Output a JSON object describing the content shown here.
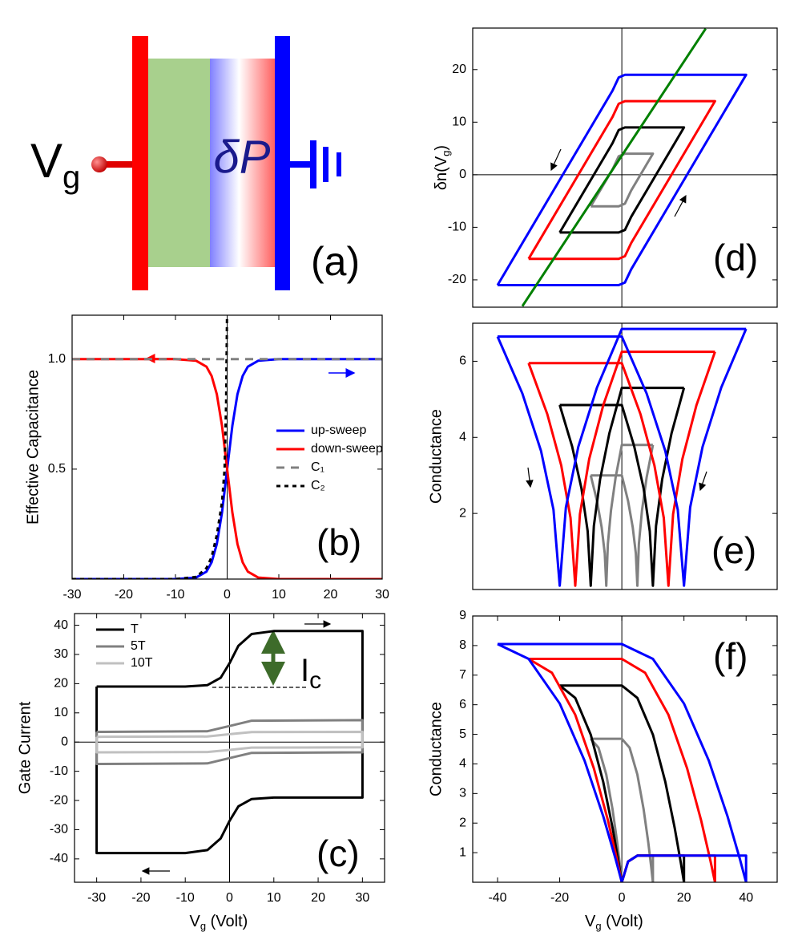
{
  "schematic": {
    "gate": [
      "V",
      "g"
    ],
    "polarization": "δP",
    "label": "(a)"
  },
  "chart_data": [
    {
      "type": "line",
      "label": "(b)",
      "ylabel": "Effective Capacitance",
      "xlim": [
        -30,
        30
      ],
      "ylim": [
        0,
        1.2
      ],
      "xticks": [
        -30,
        -20,
        -10,
        0,
        10,
        20,
        30
      ],
      "yticks": [
        0.5,
        {
          "value": 1,
          "label": "1.0"
        }
      ],
      "zero_lines": [
        "x"
      ],
      "legend": "right",
      "series": [
        {
          "name": "up-sweep",
          "color": "#0000ff",
          "x": [
            -30,
            -10,
            -6,
            -4,
            -3,
            -2,
            -1,
            0,
            1,
            2,
            3,
            4,
            6,
            10,
            30
          ],
          "values": [
            0,
            0,
            0.007,
            0.034,
            0.076,
            0.159,
            0.303,
            0.5,
            0.697,
            0.841,
            0.924,
            0.966,
            0.993,
            1,
            1
          ]
        },
        {
          "name": "down-sweep",
          "color": "#ff0000",
          "x": [
            -30,
            -10,
            -6,
            -4,
            -3,
            -2,
            -1,
            0,
            1,
            2,
            3,
            4,
            6,
            10,
            30
          ],
          "values": [
            1,
            1,
            0.993,
            0.966,
            0.924,
            0.841,
            0.697,
            0.5,
            0.303,
            0.159,
            0.076,
            0.034,
            0.007,
            0,
            0
          ]
        },
        {
          "name": "C₁",
          "color": "#808080",
          "linestyle": "dash",
          "x": [
            -30,
            30
          ],
          "values": [
            1,
            1
          ]
        },
        {
          "name": "C₂",
          "color": "#000000",
          "linestyle": "dot",
          "x": [
            -30,
            -10,
            -6,
            -4,
            -3,
            -2,
            -1,
            -0.5,
            -0.2,
            0
          ],
          "values": [
            0,
            0,
            0.01,
            0.05,
            0.1,
            0.2,
            0.35,
            0.5,
            0.8,
            1.25
          ]
        }
      ]
    },
    {
      "type": "line",
      "label": "(c)",
      "ylabel": "Gate Current",
      "xlabel": [
        "V",
        "g",
        " (Volt)"
      ],
      "annotation": [
        "I",
        "c"
      ],
      "xlim": [
        -35,
        35
      ],
      "ylim": [
        -48,
        44
      ],
      "xticks": [
        -30,
        -20,
        -10,
        0,
        10,
        20,
        30
      ],
      "yticks": [
        -40,
        -30,
        -20,
        -10,
        0,
        10,
        20,
        30,
        40
      ],
      "zero_lines": [
        "x",
        "y"
      ],
      "legend": "upper left",
      "series": [
        {
          "name": "T",
          "color": "#000000",
          "x": [
            -30,
            -10,
            -5,
            -2,
            0,
            2,
            5,
            10,
            30,
            30,
            10,
            5,
            2,
            0,
            -2,
            -5,
            -10,
            -30,
            -30
          ],
          "values": [
            19,
            19,
            19.5,
            22,
            27,
            33,
            37,
            38,
            38,
            -19,
            -19,
            -19.5,
            -22,
            -27,
            -33,
            -37,
            -38,
            -38,
            19
          ]
        },
        {
          "name": "5T",
          "color": "#808080",
          "x": [
            -30,
            -5,
            0,
            5,
            30,
            30,
            5,
            0,
            -5,
            -30,
            -30
          ],
          "values": [
            3.5,
            3.7,
            5.5,
            7.3,
            7.5,
            -3.5,
            -3.7,
            -5.5,
            -7.3,
            -7.5,
            3.5
          ]
        },
        {
          "name": "10T",
          "color": "#c0c0c0",
          "x": [
            -30,
            -5,
            0,
            5,
            30,
            30,
            5,
            0,
            -5,
            -30,
            -30
          ],
          "values": [
            1.8,
            1.9,
            2.7,
            3.4,
            3.5,
            -1.8,
            -1.9,
            -2.7,
            -3.4,
            -3.5,
            1.8
          ]
        }
      ]
    },
    {
      "type": "line",
      "label": "(d)",
      "ylabel": [
        "δn(V",
        "g",
        ")"
      ],
      "xlim": [
        -48,
        50
      ],
      "ylim": [
        -25.2,
        27.9
      ],
      "yticks": [
        -20,
        -10,
        0,
        10,
        20
      ],
      "zero_lines": [
        "x",
        "y"
      ],
      "series": [
        {
          "color": "#808080",
          "x": [
            -10,
            -3,
            -1,
            1,
            10,
            3,
            1,
            -1,
            -10
          ],
          "values": [
            -6,
            1,
            3.5,
            4,
            4,
            -3,
            -5.5,
            -6,
            -6
          ]
        },
        {
          "color": "#000000",
          "x": [
            -20,
            -3,
            -1,
            1,
            20,
            3,
            1,
            -1,
            -20
          ],
          "values": [
            -11,
            6,
            8.5,
            9,
            9,
            -8,
            -10.5,
            -11,
            -11
          ]
        },
        {
          "color": "#ff0000",
          "x": [
            -30,
            -3,
            -1,
            1,
            30,
            3,
            1,
            -1,
            -30
          ],
          "values": [
            -16,
            11,
            13.5,
            14,
            14,
            -13,
            -15.5,
            -16,
            -16
          ]
        },
        {
          "color": "#0000ff",
          "x": [
            -40,
            -3,
            -1,
            1,
            40,
            3,
            1,
            -1,
            -40
          ],
          "values": [
            -21,
            16,
            18.5,
            19,
            19,
            -18,
            -20.5,
            -21,
            -21
          ]
        },
        {
          "color": "#008000",
          "x": [
            -32,
            27
          ],
          "values": [
            -25,
            27.8
          ]
        }
      ]
    },
    {
      "type": "line",
      "label": "(e)",
      "ylabel": "Conductance",
      "xlim": [
        -48,
        50
      ],
      "ylim": [
        0,
        7
      ],
      "yticks": [
        2,
        4,
        6
      ],
      "zero_lines": [
        "x"
      ],
      "series": [
        {
          "color": "#808080",
          "x": [
            -10,
            -8,
            -6.5,
            -5.5,
            -5,
            -4.5,
            -3.5,
            -2,
            0,
            10
          ],
          "values": [
            3.0,
            2.33,
            1.64,
            0.95,
            0.1,
            1.2,
            2.08,
            2.95,
            3.8,
            3.8
          ]
        },
        {
          "color": "#808080",
          "x": [
            10,
            8,
            6.5,
            5.5,
            5,
            4.5,
            3.5,
            2,
            0,
            -10
          ],
          "values": [
            3.8,
            2.95,
            2.08,
            1.2,
            0.1,
            0.95,
            1.64,
            2.33,
            3.0,
            3.0
          ]
        },
        {
          "color": "#000000",
          "x": [
            -20,
            -16,
            -13,
            -11,
            -10,
            -9,
            -7,
            -4,
            0,
            20
          ],
          "values": [
            4.85,
            3.76,
            2.66,
            1.53,
            0.1,
            1.67,
            2.9,
            4.11,
            5.3,
            5.3
          ]
        },
        {
          "color": "#000000",
          "x": [
            20,
            16,
            13,
            11,
            10,
            9,
            7,
            4,
            0,
            -20
          ],
          "values": [
            5.3,
            4.11,
            2.9,
            1.67,
            0.1,
            1.53,
            2.66,
            3.76,
            4.85,
            4.85
          ]
        },
        {
          "color": "#ff0000",
          "x": [
            -30,
            -24,
            -19.5,
            -16.5,
            -15,
            -13.5,
            -10.5,
            -6,
            0,
            30
          ],
          "values": [
            5.95,
            4.61,
            3.26,
            1.88,
            0.1,
            1.98,
            3.43,
            4.84,
            6.25,
            6.25
          ]
        },
        {
          "color": "#ff0000",
          "x": [
            30,
            24,
            19.5,
            16.5,
            15,
            13.5,
            10.5,
            6,
            0,
            -30
          ],
          "values": [
            6.25,
            4.84,
            3.43,
            1.98,
            0.1,
            1.88,
            3.26,
            4.61,
            5.95,
            5.95
          ]
        },
        {
          "color": "#0000ff",
          "x": [
            -40,
            -32,
            -26,
            -22,
            -20,
            -18,
            -14,
            -8,
            0,
            40
          ],
          "values": [
            6.65,
            5.15,
            3.64,
            2.1,
            0.1,
            2.16,
            3.75,
            5.31,
            6.85,
            6.85
          ]
        },
        {
          "color": "#0000ff",
          "x": [
            40,
            32,
            26,
            22,
            20,
            18,
            14,
            8,
            0,
            -40
          ],
          "values": [
            6.85,
            5.31,
            3.75,
            2.16,
            0.1,
            2.1,
            3.64,
            5.15,
            6.65,
            6.65
          ]
        }
      ]
    },
    {
      "type": "line",
      "label": "(f)",
      "ylabel": "Conductance",
      "xlabel": [
        "V",
        "g",
        " (Volt)"
      ],
      "xlim": [
        -48,
        50
      ],
      "ylim": [
        0,
        9
      ],
      "xticks": [
        -40,
        -20,
        0,
        20,
        40
      ],
      "yticks": [
        1,
        2,
        3,
        4,
        5,
        6,
        7,
        8,
        9
      ],
      "zero_lines": [
        "x"
      ],
      "series": [
        {
          "color": "#808080",
          "x": [
            -10,
            0,
            2.5,
            5,
            7,
            8.5,
            9.5,
            10,
            10,
            5,
            2,
            0,
            -0.5,
            -1.5,
            -3,
            -5,
            -7.5,
            -10
          ],
          "values": [
            4.85,
            4.85,
            4.55,
            3.64,
            2.47,
            1.35,
            0.47,
            0,
            0.9,
            0.9,
            0.7,
            0,
            0.47,
            1.35,
            2.47,
            3.64,
            4.55,
            4.85
          ]
        },
        {
          "color": "#000000",
          "x": [
            -20,
            0,
            5,
            10,
            14,
            17,
            19,
            20,
            20,
            5,
            2,
            0,
            -1,
            -3,
            -6,
            -10,
            -15,
            -20
          ],
          "values": [
            6.65,
            6.65,
            6.23,
            4.99,
            3.39,
            1.85,
            0.65,
            0,
            0.9,
            0.9,
            0.7,
            0,
            0.65,
            1.85,
            3.39,
            4.99,
            6.23,
            6.65
          ]
        },
        {
          "color": "#ff0000",
          "x": [
            -30,
            0,
            7.5,
            15,
            21,
            25.5,
            28.5,
            30,
            30,
            5,
            2,
            0,
            -1.5,
            -4.5,
            -9,
            -15,
            -22.5,
            -30
          ],
          "values": [
            7.55,
            7.55,
            7.08,
            5.66,
            3.85,
            2.1,
            0.74,
            0,
            0.9,
            0.9,
            0.7,
            0,
            0.74,
            2.1,
            3.85,
            5.66,
            7.08,
            7.55
          ]
        },
        {
          "color": "#0000ff",
          "x": [
            -40,
            0,
            10,
            20,
            28,
            34,
            38,
            40,
            40,
            5,
            2,
            0,
            -2,
            -6,
            -12,
            -20,
            -30,
            -40
          ],
          "values": [
            8.05,
            8.05,
            7.55,
            6.04,
            4.11,
            2.23,
            0.78,
            0,
            0.9,
            0.9,
            0.7,
            0,
            0.78,
            2.23,
            4.11,
            6.04,
            7.55,
            8.05
          ]
        }
      ]
    }
  ]
}
